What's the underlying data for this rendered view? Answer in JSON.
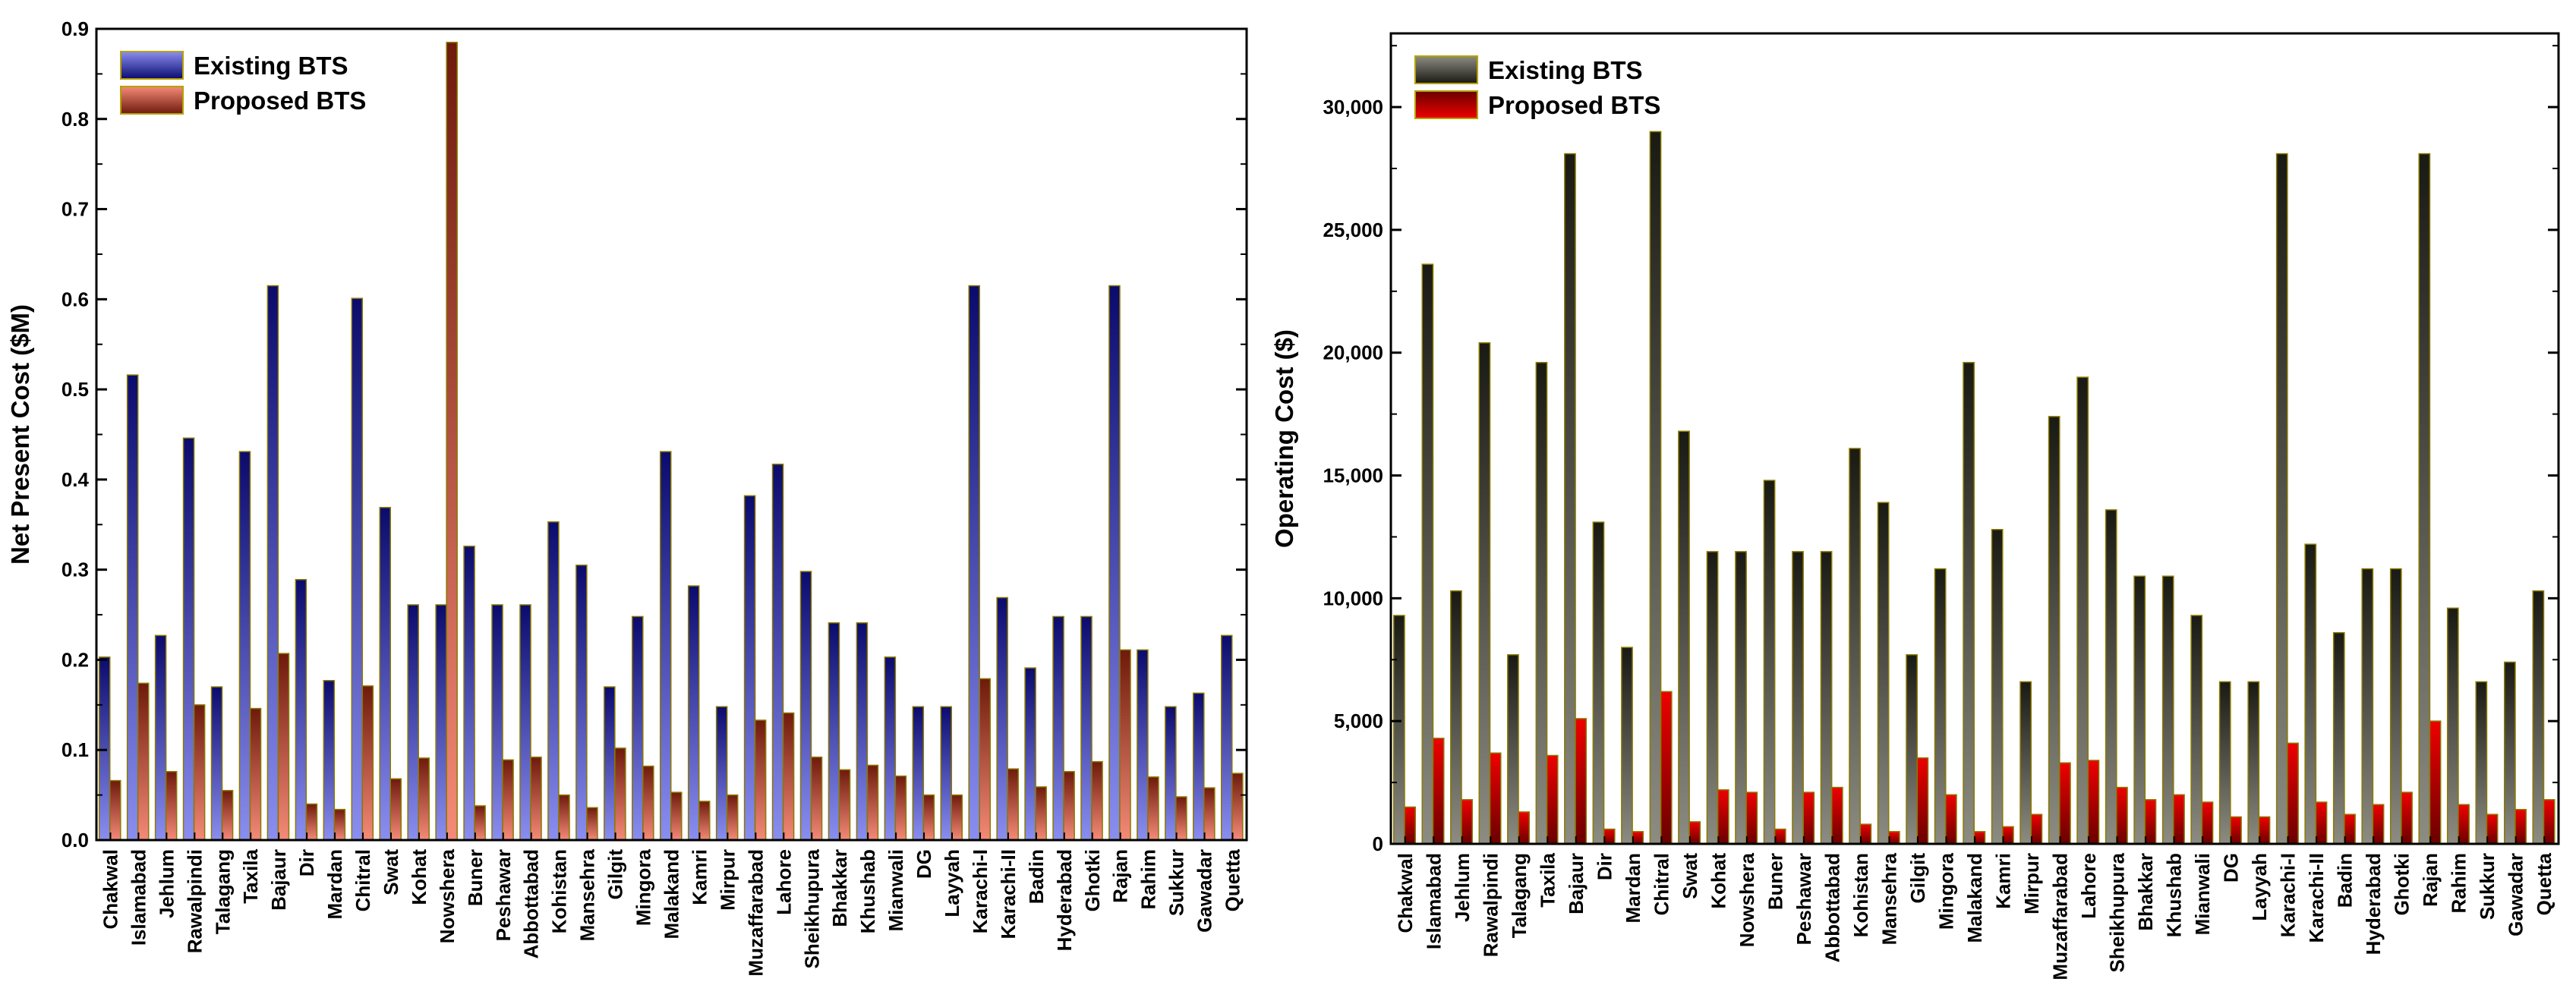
{
  "chart_data": [
    {
      "type": "bar",
      "title": "",
      "xlabel": "",
      "ylabel": "Net Present Cost ($M)",
      "ylim": [
        0,
        0.9
      ],
      "yticks": [
        0.0,
        0.1,
        0.2,
        0.3,
        0.4,
        0.5,
        0.6,
        0.7,
        0.8,
        0.9
      ],
      "ytick_labels": [
        "0.0",
        "0.1",
        "0.2",
        "0.3",
        "0.4",
        "0.5",
        "0.6",
        "0.7",
        "0.8",
        "0.9"
      ],
      "legend_position": "top-left",
      "categories": [
        "Chakwal",
        "Islamabad",
        "Jehlum",
        "Rawalpindi",
        "Talagang",
        "Taxila",
        "Bajaur",
        "Dir",
        "Mardan",
        "Chitral",
        "Swat",
        "Kohat",
        "Nowshera",
        "Buner",
        "Peshawar",
        "Abbottabad",
        "Kohistan",
        "Mansehra",
        "Gilgit",
        "Mingora",
        "Malakand",
        "Kamri",
        "Mirpur",
        "Muzaffarabad",
        "Lahore",
        "Sheikhupura",
        "Bhakkar",
        "Khushab",
        "Mianwali",
        "DG",
        "Layyah",
        "Karachi-I",
        "Karachi-II",
        "Badin",
        "Hyderabad",
        "Ghotki",
        "Rajan",
        "Rahim",
        "Sukkur",
        "Gawadar",
        "Quetta"
      ],
      "series": [
        {
          "name": "Existing BTS",
          "color_top": "#0b0b6e",
          "color_bottom": "#8a8ef0",
          "values": [
            0.203,
            0.516,
            0.227,
            0.446,
            0.17,
            0.431,
            0.615,
            0.289,
            0.177,
            0.601,
            0.369,
            0.261,
            0.261,
            0.326,
            0.261,
            0.261,
            0.353,
            0.305,
            0.17,
            0.248,
            0.431,
            0.282,
            0.148,
            0.382,
            0.417,
            0.298,
            0.241,
            0.241,
            0.203,
            0.148,
            0.148,
            0.615,
            0.269,
            0.191,
            0.248,
            0.248,
            0.615,
            0.211,
            0.148,
            0.163,
            0.227
          ]
        },
        {
          "name": "Proposed BTS",
          "color_top": "#6e1a0c",
          "color_bottom": "#f58a78",
          "values": [
            0.066,
            0.174,
            0.076,
            0.15,
            0.055,
            0.146,
            0.207,
            0.04,
            0.034,
            0.171,
            0.068,
            0.091,
            0.885,
            0.038,
            0.089,
            0.092,
            0.05,
            0.036,
            0.102,
            0.082,
            0.053,
            0.043,
            0.05,
            0.133,
            0.141,
            0.092,
            0.078,
            0.083,
            0.071,
            0.05,
            0.05,
            0.179,
            0.079,
            0.059,
            0.076,
            0.087,
            0.211,
            0.07,
            0.048,
            0.058,
            0.074
          ]
        }
      ]
    },
    {
      "type": "bar",
      "title": "",
      "xlabel": "",
      "ylabel": "Operating Cost ($)",
      "ylim": [
        0,
        33000
      ],
      "yticks": [
        0,
        5000,
        10000,
        15000,
        20000,
        25000,
        30000
      ],
      "ytick_labels": [
        "0",
        "5,000",
        "10,000",
        "15,000",
        "20,000",
        "25,000",
        "30,000"
      ],
      "legend_position": "top-left",
      "categories": [
        "Chakwal",
        "Islamabad",
        "Jehlum",
        "Rawalpindi",
        "Talagang",
        "Taxila",
        "Bajaur",
        "Dir",
        "Mardan",
        "Chitral",
        "Swat",
        "Kohat",
        "Nowshera",
        "Buner",
        "Peshawar",
        "Abbottabad",
        "Kohistan",
        "Mansehra",
        "Gilgit",
        "Mingora",
        "Malakand",
        "Kamri",
        "Mirpur",
        "Muzaffarabad",
        "Lahore",
        "Sheikhupura",
        "Bhakkar",
        "Khushab",
        "Mianwali",
        "DG",
        "Layyah",
        "Karachi-I",
        "Karachi-II",
        "Badin",
        "Hyderabad",
        "Ghotki",
        "Rajan",
        "Rahim",
        "Sukkur",
        "Gawadar",
        "Quetta"
      ],
      "series": [
        {
          "name": "Existing BTS",
          "color_top": "#1a1a14",
          "color_bottom": "#8c8c82",
          "values": [
            9300,
            23600,
            10300,
            20400,
            7700,
            19600,
            28100,
            13100,
            8000,
            29000,
            16800,
            11900,
            11900,
            14800,
            11900,
            11900,
            16100,
            13900,
            7700,
            11200,
            19600,
            12800,
            6600,
            17400,
            19000,
            13600,
            10900,
            10900,
            9300,
            6600,
            6600,
            28100,
            12200,
            8600,
            11200,
            11200,
            28100,
            9600,
            6600,
            7400,
            10300
          ]
        },
        {
          "name": "Proposed BTS",
          "color_top": "#ee0000",
          "color_bottom": "#6a0000",
          "values": [
            1500,
            4300,
            1800,
            3700,
            1300,
            3600,
            5100,
            600,
            500,
            6200,
            900,
            2200,
            2100,
            600,
            2100,
            2300,
            800,
            500,
            3500,
            2000,
            500,
            700,
            1200,
            3300,
            3400,
            2300,
            1800,
            2000,
            1700,
            1100,
            1100,
            4100,
            1700,
            1200,
            1600,
            2100,
            5000,
            1600,
            1200,
            1400,
            1800
          ]
        }
      ]
    }
  ]
}
